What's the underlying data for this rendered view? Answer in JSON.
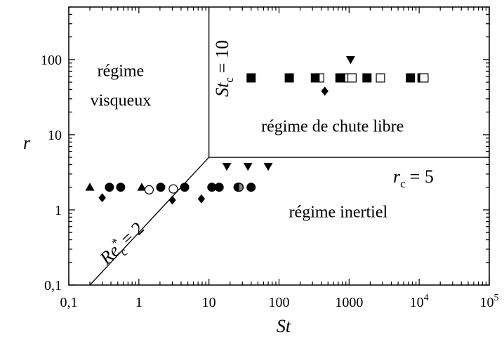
{
  "chart_data": {
    "type": "scatter",
    "xlabel": "St",
    "ylabel": "r",
    "xscale": "log",
    "yscale": "log",
    "xlim": [
      0.1,
      100000
    ],
    "ylim": [
      0.1,
      500
    ],
    "grid": false,
    "x_ticks": [
      {
        "value": 0.1,
        "label": "0,1"
      },
      {
        "value": 1,
        "label": "1"
      },
      {
        "value": 10,
        "label": "10"
      },
      {
        "value": 100,
        "label": "100"
      },
      {
        "value": 1000,
        "label": "1000"
      },
      {
        "value": 10000,
        "label": "10",
        "exp": "4"
      },
      {
        "value": 100000,
        "label": "10",
        "exp": "5"
      }
    ],
    "y_ticks": [
      {
        "value": 0.1,
        "label": "0,1"
      },
      {
        "value": 1,
        "label": "1"
      },
      {
        "value": 10,
        "label": "10"
      },
      {
        "value": 100,
        "label": "100"
      }
    ],
    "boundaries": [
      {
        "points": [
          [
            0.2,
            0.1
          ],
          [
            10,
            5
          ]
        ]
      },
      {
        "points": [
          [
            10,
            5
          ],
          [
            10,
            500
          ]
        ]
      },
      {
        "points": [
          [
            10,
            5
          ],
          [
            100000,
            5
          ]
        ]
      }
    ],
    "regions": [
      {
        "lines": [
          "régime",
          "visqueux"
        ],
        "x": 0.55,
        "y": 60
      },
      {
        "lines": [
          "régime de chute libre"
        ],
        "x": 580,
        "y": 11
      },
      {
        "lines": [
          "régime inertiel"
        ],
        "x": 700,
        "y": 0.8
      }
    ],
    "annotations": {
      "re_c": {
        "base": "Re",
        "sup": "*",
        "sub": "c",
        "value": "= 2"
      },
      "st_c": {
        "base": "St",
        "sub": "c",
        "value": "= 10"
      },
      "r_c": {
        "base": "r",
        "sub": "c",
        "value": "= 5"
      }
    },
    "series": [
      {
        "marker": "triangle-up",
        "points": [
          [
            0.2,
            2
          ],
          [
            1.1,
            2
          ]
        ]
      },
      {
        "marker": "circle",
        "points": [
          [
            0.38,
            2
          ],
          [
            0.55,
            2
          ],
          [
            2.05,
            2
          ],
          [
            4.5,
            2
          ],
          [
            11,
            2
          ],
          [
            14,
            2
          ],
          [
            26,
            2
          ],
          [
            40,
            2
          ]
        ]
      },
      {
        "marker": "circle-open",
        "points": [
          [
            1.4,
            1.85
          ],
          [
            3.1,
            1.9
          ]
        ]
      },
      {
        "marker": "circle-half",
        "points": [
          [
            27,
            2
          ]
        ]
      },
      {
        "marker": "diamond",
        "points": [
          [
            0.3,
            1.45
          ],
          [
            3,
            1.35
          ],
          [
            7.8,
            1.4
          ],
          [
            450,
            38
          ]
        ]
      },
      {
        "marker": "triangle-down",
        "points": [
          [
            18,
            3.8
          ],
          [
            36,
            3.8
          ],
          [
            70,
            3.8
          ],
          [
            1050,
            100
          ]
        ]
      },
      {
        "marker": "square",
        "points": [
          [
            40,
            57
          ],
          [
            140,
            57
          ],
          [
            330,
            57
          ],
          [
            740,
            57
          ],
          [
            1000,
            57
          ],
          [
            1800,
            57
          ],
          [
            7500,
            57
          ]
        ]
      },
      {
        "marker": "square-half",
        "points": [
          [
            380,
            57
          ],
          [
            880,
            57
          ],
          [
            11000,
            57
          ]
        ]
      },
      {
        "marker": "square-open",
        "points": [
          [
            1100,
            57
          ],
          [
            2800,
            57
          ],
          [
            11700,
            57
          ]
        ]
      }
    ]
  }
}
